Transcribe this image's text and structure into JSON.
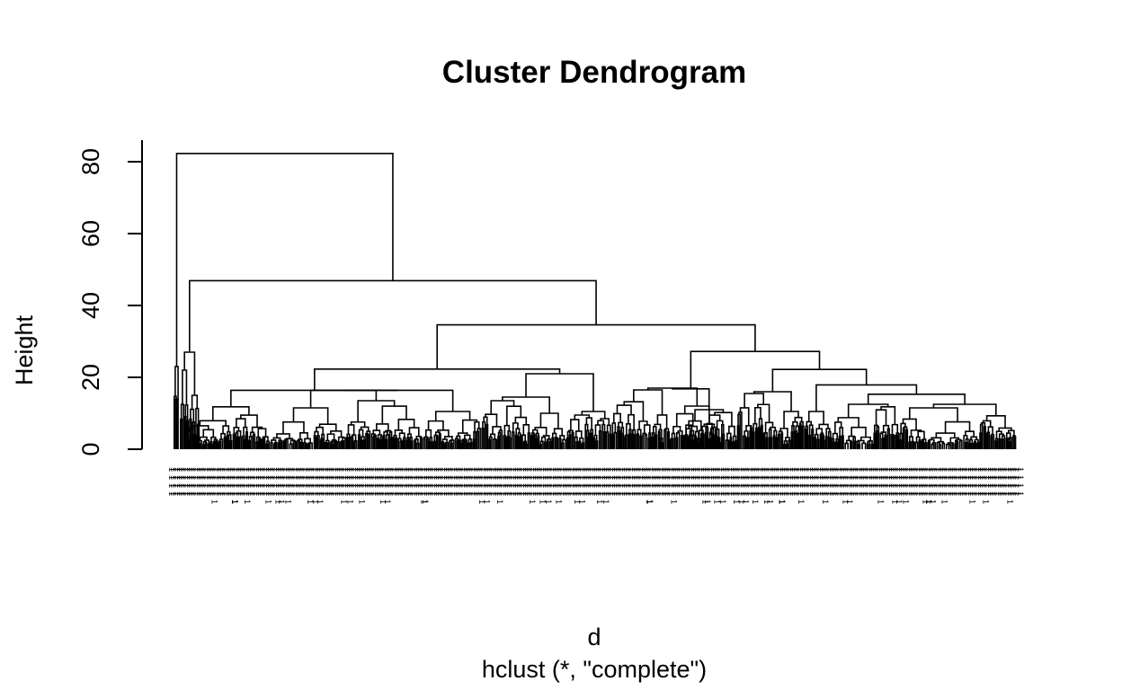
{
  "chart_data": {
    "type": "dendrogram",
    "title": "Cluster Dendrogram",
    "xlabel": "d",
    "sub": "hclust (*, \"complete\")",
    "ylabel": "Height",
    "ylim": [
      0,
      85
    ],
    "y_ticks": [
      "0",
      "20",
      "40",
      "60",
      "80"
    ],
    "y_tick_values": [
      0,
      20,
      40,
      60,
      80
    ],
    "method": "complete",
    "merges": [
      {
        "height": 82.3,
        "children": [
          "outlier_group",
          "main_group"
        ]
      },
      {
        "height": 46.9,
        "children": [
          "outlier_cluster_2",
          "cluster_AB"
        ]
      },
      {
        "height": 34.6,
        "children": [
          "cluster_A",
          "cluster_B"
        ]
      },
      {
        "height": 27.2,
        "children": [
          "cluster_B1",
          "cluster_B2"
        ]
      },
      {
        "height": 22.3,
        "children": [
          "cluster_A1",
          "cluster_A2"
        ]
      },
      {
        "height": 22.2,
        "children": [
          "cluster_B2a",
          "cluster_B2b"
        ]
      },
      {
        "height": 21.0,
        "children": [
          "cluster_A2a",
          "cluster_A2b"
        ]
      },
      {
        "height": 17.9,
        "children": [
          "cluster_B2b1",
          "cluster_B2b2"
        ]
      },
      {
        "height": 16.4,
        "children": [
          "cluster_A1a",
          "cluster_A1b"
        ]
      },
      {
        "height": 16.5,
        "children": [
          "cluster_B1a",
          "cluster_B1b"
        ]
      },
      {
        "height": 15.3,
        "children": [
          "cluster_B2b2a",
          "cluster_B2b2b"
        ]
      }
    ],
    "leaf_label": "1",
    "leaf_label_rows": 4
  }
}
